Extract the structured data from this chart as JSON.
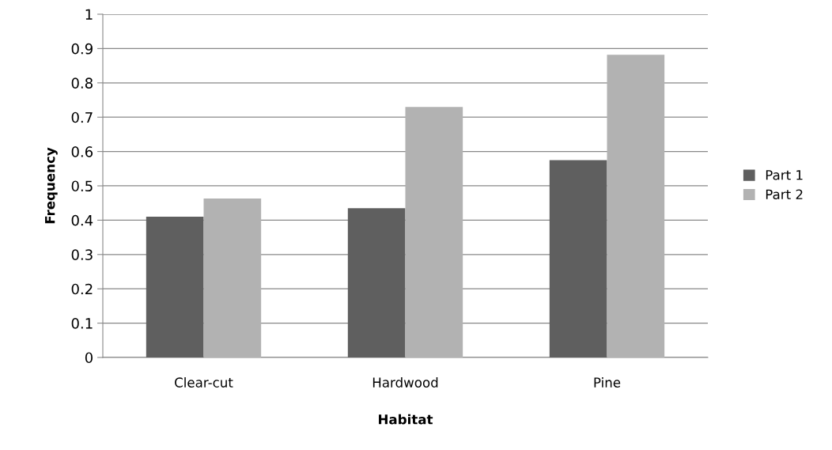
{
  "chart_data": {
    "type": "bar",
    "xlabel": "Habitat",
    "ylabel": "Frequency",
    "categories": [
      "Clear-cut",
      "Hardwood",
      "Pine"
    ],
    "series": [
      {
        "name": "Part 1",
        "color": "#5f5f5f",
        "values": [
          0.41,
          0.435,
          0.575
        ]
      },
      {
        "name": "Part 2",
        "color": "#b2b2b2",
        "values": [
          0.463,
          0.73,
          0.882
        ]
      }
    ],
    "ylim": [
      0,
      1
    ],
    "yticks": [
      0,
      {
        "value": 0.1,
        "label": "0.1"
      },
      {
        "value": 0.2,
        "label": "0.2"
      },
      {
        "value": 0.3,
        "label": "0.3"
      },
      {
        "value": 0.4,
        "label": "0.4"
      },
      {
        "value": 0.5,
        "label": "0.5"
      },
      {
        "value": 0.6,
        "label": "0.6"
      },
      {
        "value": 0.7,
        "label": "0.7"
      },
      {
        "value": 0.8,
        "label": "0.8"
      },
      {
        "value": 0.9,
        "label": "0.9"
      },
      1
    ],
    "grid": "y",
    "legend": "right"
  }
}
